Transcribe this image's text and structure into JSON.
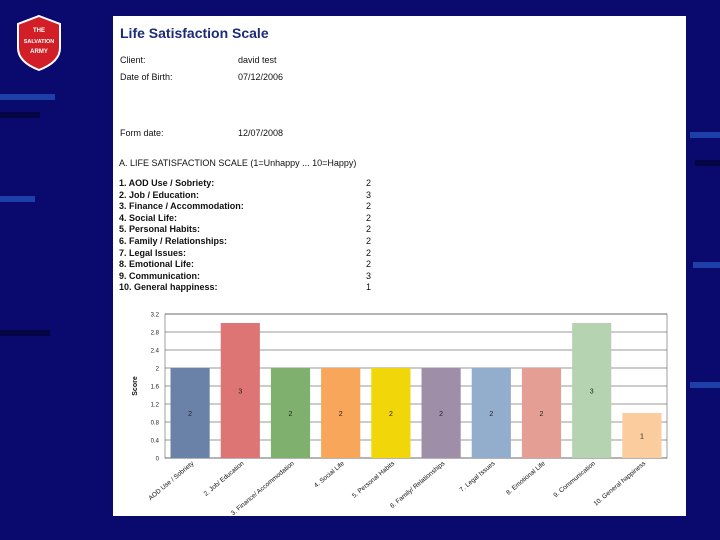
{
  "logo": {
    "line1": "THE",
    "line2": "SALVATION",
    "line3": "ARMY"
  },
  "document": {
    "title": "Life Satisfaction Scale",
    "client_label": "Client:",
    "client_value": "david test",
    "dob_label": "Date of Birth:",
    "dob_value": "07/12/2006",
    "form_date_label": "Form date:",
    "form_date_value": "12/07/2008",
    "section_title": "A. LIFE SATISFACTION SCALE (1=Unhappy ... 10=Happy)",
    "items": [
      {
        "label": "1. AOD Use / Sobriety:",
        "score": "2"
      },
      {
        "label": "2. Job / Education:",
        "score": "3"
      },
      {
        "label": "3. Finance / Accommodation:",
        "score": "2"
      },
      {
        "label": "4. Social Life:",
        "score": "2"
      },
      {
        "label": "5. Personal Habits:",
        "score": "2"
      },
      {
        "label": "6. Family / Relationships:",
        "score": "2"
      },
      {
        "label": "7. Legal Issues:",
        "score": "2"
      },
      {
        "label": "8. Emotional Life:",
        "score": "2"
      },
      {
        "label": "9. Communication:",
        "score": "3"
      },
      {
        "label": "10. General happiness:",
        "score": "1"
      }
    ]
  },
  "chart_data": {
    "type": "bar",
    "title": "",
    "xlabel": "",
    "ylabel": "Score",
    "ylim": [
      0,
      3.2
    ],
    "yticks": [
      "0",
      "0.4",
      "0.8",
      "1.2",
      "1.6",
      "2",
      "2.4",
      "2.8",
      "3.2"
    ],
    "categories": [
      "AOD Use / Sobriety",
      "2. Job/ Education",
      "3. Finance/ Accommodation",
      "4. Social Life",
      "5. Personal Habits",
      "6. Family/ Relationships",
      "7. Legal Issues",
      "8. Emotional Life",
      "9. Communication",
      "10. General happiness"
    ],
    "values": [
      2,
      3,
      2,
      2,
      2,
      2,
      2,
      2,
      3,
      1
    ],
    "value_labels": [
      "2",
      "3",
      "2",
      "2",
      "2",
      "2",
      "2",
      "2",
      "3",
      "1"
    ],
    "colors": [
      "#6b82a8",
      "#dc7573",
      "#7fb06e",
      "#f8a65a",
      "#f1d60a",
      "#9e8ea8",
      "#93adcc",
      "#e59e93",
      "#b5d3b0",
      "#fbcc9e"
    ]
  }
}
